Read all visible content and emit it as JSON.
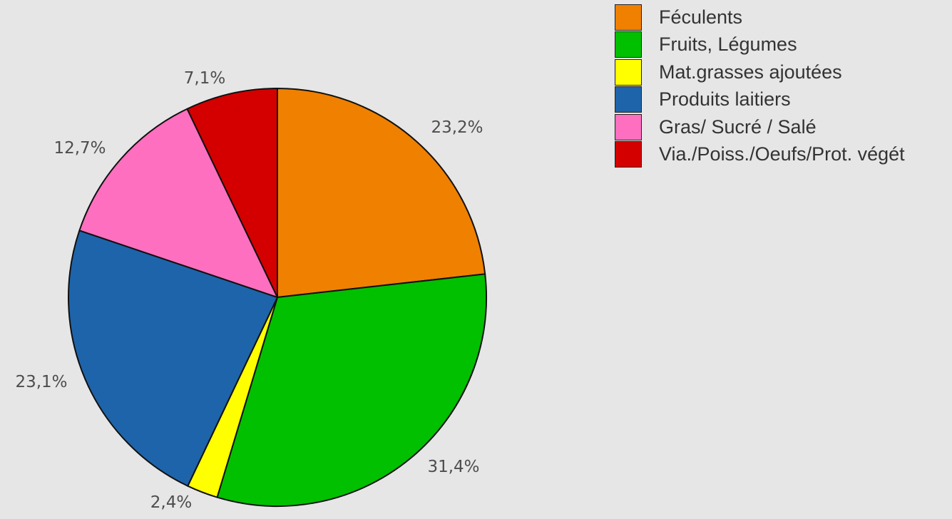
{
  "chart_data": {
    "type": "pie",
    "title": "",
    "slices": [
      {
        "label": "Féculents",
        "value": 23.2,
        "value_label": "23,2%",
        "color": "#f08000"
      },
      {
        "label": "Fruits, Légumes",
        "value": 31.4,
        "value_label": "31,4%",
        "color": "#00c000"
      },
      {
        "label": "Mat.grasses ajoutées",
        "value": 2.4,
        "value_label": "2,4%",
        "color": "#ffff00"
      },
      {
        "label": "Produits laitiers",
        "value": 23.1,
        "value_label": "23,1%",
        "color": "#1e64aa"
      },
      {
        "label": "Gras/ Sucré / Salé",
        "value": 12.7,
        "value_label": "12,7%",
        "color": "#ff6fbf"
      },
      {
        "label": "Via./Poiss./Oeufs/Prot. végét",
        "value": 7.1,
        "value_label": "7,1%",
        "color": "#d40000"
      }
    ],
    "start_angle": "12 o'clock",
    "direction": "clockwise",
    "legend_position": "top-right"
  }
}
